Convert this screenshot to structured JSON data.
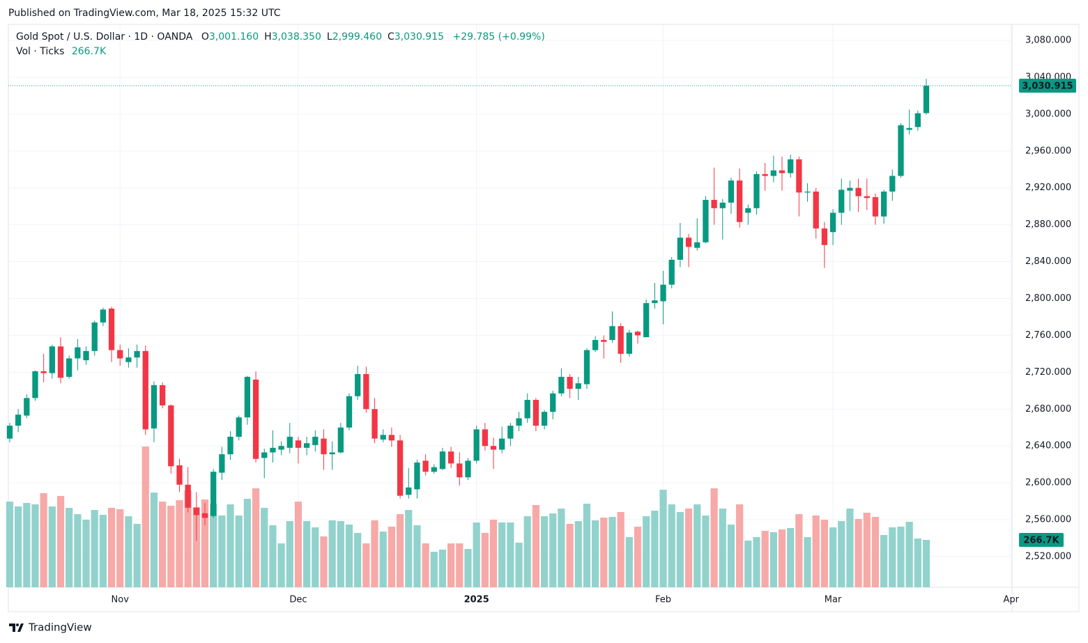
{
  "header": {
    "published": "Published on TradingView.com, Mar 18, 2025 15:32 UTC"
  },
  "footer": {
    "brand": "TradingView"
  },
  "chart_data": {
    "type": "candlestick",
    "legend": {
      "symbol": "Gold Spot / U.S. Dollar · 1D · OANDA",
      "fields": [
        {
          "key": "O",
          "value": "3,001.160"
        },
        {
          "key": "H",
          "value": "3,038.350"
        },
        {
          "key": "L",
          "value": "2,999.460"
        },
        {
          "key": "C",
          "value": "3,030.915"
        }
      ],
      "change": "+29.785 (+0.99%)"
    },
    "last_price_label": "3,030.915",
    "up_color": "#089981",
    "down_color": "#f23645",
    "volume_up_color": "#92d2cc",
    "volume_down_color": "#f7a9a7",
    "grid": true,
    "xlim": [
      -0.16,
      118.1
    ],
    "xticks": [
      {
        "value": 13,
        "label": "Nov"
      },
      {
        "value": 34,
        "label": "Dec"
      },
      {
        "value": 55,
        "label": "2025"
      },
      {
        "value": 77,
        "label": "Feb"
      },
      {
        "value": 97,
        "label": "Mar"
      },
      {
        "value": 118,
        "label": "Apr"
      }
    ],
    "ylim": [
      2486.7,
      3097.4
    ],
    "yticks": [
      {
        "value": 2520,
        "label": "2,520.000"
      },
      {
        "value": 2560,
        "label": "2,560.000"
      },
      {
        "value": 2600,
        "label": "2,600.000"
      },
      {
        "value": 2640,
        "label": "2,640.000"
      },
      {
        "value": 2680,
        "label": "2,680.000"
      },
      {
        "value": 2720,
        "label": "2,720.000"
      },
      {
        "value": 2760,
        "label": "2,760.000"
      },
      {
        "value": 2800,
        "label": "2,800.000"
      },
      {
        "value": 2840,
        "label": "2,840.000"
      },
      {
        "value": 2880,
        "label": "2,880.000"
      },
      {
        "value": 2920,
        "label": "2,920.000"
      },
      {
        "value": 2960,
        "label": "2,960.000"
      },
      {
        "value": 3000,
        "label": "3,000.000"
      },
      {
        "value": 3040,
        "label": "3,040.000"
      },
      {
        "value": 3080,
        "label": "3,080.000"
      }
    ],
    "open": [
      2648,
      2662,
      2673,
      2692,
      2721,
      2719,
      2748,
      2715,
      2735,
      2733,
      2743,
      2774,
      2789,
      2744,
      2731,
      2736,
      2743,
      2659,
      2706,
      2684,
      2619,
      2598,
      2573,
      2567,
      2564,
      2611,
      2631,
      2650,
      2671,
      2712,
      2627,
      2633,
      2636,
      2638,
      2646,
      2638,
      2641,
      2648,
      2631,
      2633,
      2660,
      2694,
      2718,
      2680,
      2647,
      2652,
      2646,
      2587,
      2593,
      2624,
      2612,
      2615,
      2634,
      2621,
      2606,
      2624,
      2658,
      2640,
      2636,
      2648,
      2662,
      2670,
      2690,
      2662,
      2677,
      2697,
      2715,
      2702,
      2707,
      2744,
      2755,
      2755,
      2770,
      2740,
      2764,
      2758,
      2795,
      2797,
      2815,
      2842,
      2866,
      2855,
      2861,
      2907,
      2898,
      2904,
      2928,
      2893,
      2898,
      2935,
      2933,
      2939,
      2936,
      2951,
      2915,
      2916,
      2876,
      2872,
      2893,
      2917,
      2920,
      2911,
      2910,
      2889,
      2916,
      2933,
      2983,
      2986,
      3001.16
    ],
    "high": [
      2665,
      2680,
      2696,
      2722,
      2740,
      2750,
      2758,
      2738,
      2756,
      2748,
      2776,
      2790,
      2791,
      2750,
      2746,
      2750,
      2749,
      2710,
      2709,
      2685,
      2626,
      2617,
      2590,
      2578,
      2615,
      2639,
      2656,
      2673,
      2716,
      2721,
      2637,
      2657,
      2645,
      2665,
      2650,
      2650,
      2657,
      2658,
      2645,
      2665,
      2697,
      2727,
      2726,
      2692,
      2658,
      2660,
      2652,
      2616,
      2625,
      2631,
      2620,
      2638,
      2639,
      2633,
      2627,
      2662,
      2665,
      2649,
      2661,
      2665,
      2677,
      2697,
      2692,
      2679,
      2700,
      2724,
      2718,
      2715,
      2746,
      2759,
      2760,
      2786,
      2773,
      2766,
      2765,
      2799,
      2817,
      2830,
      2845,
      2882,
      2870,
      2887,
      2911,
      2942,
      2908,
      2931,
      2941,
      2902,
      2938,
      2947,
      2955,
      2954,
      2956,
      2954,
      2925,
      2920,
      2883,
      2897,
      2930,
      2928,
      2930,
      2930,
      2914,
      2918,
      2940,
      2990,
      3005,
      3004,
      3038.35
    ],
    "low": [
      2644,
      2655,
      2670,
      2689,
      2709,
      2713,
      2708,
      2713,
      2722,
      2728,
      2738,
      2770,
      2731,
      2727,
      2725,
      2725,
      2652,
      2644,
      2681,
      2610,
      2590,
      2568,
      2537,
      2554,
      2562,
      2603,
      2625,
      2646,
      2663,
      2622,
      2605,
      2622,
      2630,
      2632,
      2621,
      2630,
      2634,
      2614,
      2614,
      2632,
      2657,
      2690,
      2676,
      2643,
      2644,
      2639,
      2583,
      2583,
      2583,
      2608,
      2610,
      2614,
      2616,
      2597,
      2603,
      2621,
      2635,
      2615,
      2632,
      2640,
      2656,
      2665,
      2656,
      2658,
      2669,
      2694,
      2692,
      2690,
      2702,
      2742,
      2735,
      2752,
      2730,
      2737,
      2751,
      2758,
      2789,
      2772,
      2811,
      2834,
      2834,
      2852,
      2860,
      2880,
      2864,
      2892,
      2877,
      2880,
      2891,
      2917,
      2926,
      2917,
      2931,
      2889,
      2905,
      2865,
      2833,
      2858,
      2880,
      2895,
      2894,
      2896,
      2880,
      2881,
      2906,
      2931,
      2978,
      2982,
      2999.46
    ],
    "close": [
      2662,
      2674,
      2692,
      2721,
      2719,
      2748,
      2714,
      2735,
      2747,
      2743,
      2774,
      2788,
      2744,
      2735,
      2736,
      2743,
      2658,
      2706,
      2684,
      2618,
      2598,
      2573,
      2565,
      2562,
      2612,
      2631,
      2650,
      2671,
      2715,
      2626,
      2633,
      2638,
      2640,
      2650,
      2638,
      2643,
      2650,
      2631,
      2633,
      2660,
      2694,
      2718,
      2680,
      2648,
      2652,
      2646,
      2586,
      2595,
      2622,
      2612,
      2617,
      2634,
      2621,
      2606,
      2624,
      2658,
      2640,
      2636,
      2648,
      2662,
      2670,
      2690,
      2662,
      2677,
      2697,
      2715,
      2702,
      2708,
      2744,
      2755,
      2753,
      2770,
      2740,
      2763,
      2760,
      2795,
      2798,
      2815,
      2842,
      2866,
      2856,
      2861,
      2907,
      2898,
      2904,
      2928,
      2883,
      2898,
      2935,
      2933,
      2939,
      2936,
      2951,
      2915,
      2916,
      2876,
      2858,
      2893,
      2918,
      2920,
      2911,
      2909,
      2889,
      2916,
      2933,
      2988,
      2985,
      3001,
      3030.915
    ],
    "volume": {
      "name": "Vol · Ticks",
      "last_label": "266.7K",
      "lim": [
        0,
        3169
      ],
      "values": [
        482.4,
        455.0,
        474.6,
        466.7,
        529.5,
        455.0,
        513.8,
        447.1,
        411.8,
        380.4,
        435.3,
        407.9,
        447.1,
        439.3,
        400.0,
        356.9,
        792.2,
        533.4,
        482.4,
        458.9,
        490.3,
        545.2,
        451.0,
        494.2,
        470.6,
        404.0,
        466.7,
        404.0,
        498.1,
        556.9,
        447.1,
        349.1,
        247.1,
        372.6,
        482.4,
        372.6,
        337.3,
        286.3,
        376.5,
        372.6,
        353.0,
        305.9,
        247.1,
        376.5,
        313.8,
        341.2,
        411.8,
        435.3,
        349.1,
        247.1,
        200.0,
        211.8,
        247.1,
        247.1,
        215.7,
        364.7,
        305.9,
        380.4,
        364.7,
        364.7,
        251.0,
        400.0,
        462.8,
        400.0,
        415.7,
        443.2,
        356.9,
        372.6,
        470.6,
        376.5,
        392.2,
        396.1,
        423.6,
        282.4,
        341.2,
        400.0,
        431.4,
        549.1,
        466.7,
        423.6,
        443.2,
        466.7,
        404.0,
        556.9,
        443.2,
        353.0,
        466.7,
        262.8,
        282.4,
        317.7,
        309.8,
        325.5,
        333.4,
        411.8,
        282.4,
        404.0,
        380.4,
        337.3,
        372.6,
        443.2,
        384.4,
        419.7,
        396.1,
        294.2,
        337.3,
        341.2,
        368.7,
        274.5,
        266.7
      ]
    }
  }
}
